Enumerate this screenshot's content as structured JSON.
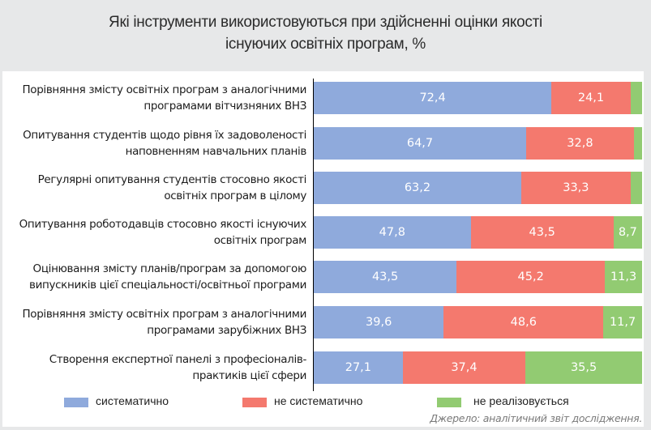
{
  "chart_data": {
    "type": "bar",
    "orientation": "horizontal",
    "stacked": true,
    "title_lines": [
      "Які інструменти використовуються при здійсненні оцінки якості",
      "існуючих освітніх програм, %"
    ],
    "categories": [
      [
        "Порівняння змісту освітніх програм з аналогічними",
        "програмами вітчизняних ВНЗ"
      ],
      [
        "Опитування студентів щодо рівня їх задоволеності",
        "наповненням навчальних планів"
      ],
      [
        "Регулярні опитування студентів стосовно якості",
        "освітніх програм в цілому"
      ],
      [
        "Опитування роботодавців стосовно якості існуючих",
        "освітніх програм"
      ],
      [
        "Оцінювання змісту планів/програм за допомогою",
        "випускників цієї спеціальності/освітньої програми"
      ],
      [
        "Порівняння змісту освітніх програм з аналогічними",
        "програмами зарубіжних ВНЗ"
      ],
      [
        "Створення експертної панелі з професіоналів-",
        "практиків цієї сфери"
      ]
    ],
    "series": [
      {
        "name": "систематично",
        "color": "#8faadc",
        "values": [
          72.4,
          64.7,
          63.2,
          47.8,
          43.5,
          39.6,
          27.1
        ],
        "labels": [
          "72,4",
          "64,7",
          "63,2",
          "47,8",
          "43,5",
          "39,6",
          "27,1"
        ]
      },
      {
        "name": "не систематично",
        "color": "#f4796e",
        "values": [
          24.1,
          32.8,
          33.3,
          43.5,
          45.2,
          48.6,
          37.4
        ],
        "labels": [
          "24,1",
          "32,8",
          "33,3",
          "43,5",
          "45,2",
          "48,6",
          "37,4"
        ]
      },
      {
        "name": "не реалізовується",
        "color": "#92cb72",
        "values": [
          3.5,
          2.5,
          3.5,
          8.7,
          11.3,
          11.7,
          35.5
        ],
        "labels": [
          "",
          "",
          "",
          "8,7",
          "11,3",
          "11,7",
          "35,5"
        ]
      }
    ],
    "xlim": [
      0,
      100
    ],
    "grid": false,
    "legend_position": "bottom",
    "source": "Джерело: аналітичний звіт дослідження."
  }
}
